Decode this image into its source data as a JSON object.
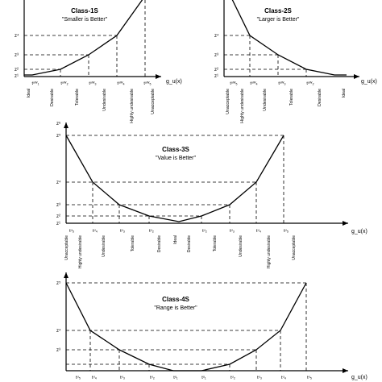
{
  "axis_label": "g_u(x)",
  "panels": [
    {
      "title": "Class-1S",
      "subtitle": "\"Smaller is Better\"",
      "z_labels": [
        "z¹",
        "z²",
        "z³",
        "z⁴"
      ],
      "t_labels": [
        "tᵘᵂ₁",
        "tᵘᵂ₂",
        "tᵘᵂ₃",
        "tᵘᵂ₄",
        "tᵘᵂ₅"
      ],
      "categories": [
        "Ideal",
        "Desirable",
        "Tolerable",
        "Undesirable",
        "Highly undesirable",
        "Unacceptable"
      ]
    },
    {
      "title": "Class-2S",
      "subtitle": "\"Larger is Better\"",
      "z_labels": [
        "z¹",
        "z²",
        "z³",
        "z⁴"
      ],
      "t_labels": [
        "tᵘᵂ₅",
        "tᵘᵂ₄",
        "tᵘᵂ₃",
        "tᵘᵂ₂"
      ],
      "categories": [
        "Unacceptable",
        "Highly undesirable",
        "Undesirable",
        "Tolerable",
        "Desirable",
        "Ideal"
      ]
    },
    {
      "title": "Class-3S",
      "subtitle": "\"Value is Better\"",
      "z_labels": [
        "z¹",
        "z²",
        "z³",
        "z⁴",
        "z⁵"
      ],
      "y_axis_label": "zᵘ",
      "t_labels": [
        "tᵘ₅",
        "tᵘ₄",
        "tᵘ₃",
        "tᵘ₂",
        "tᵘ₂",
        "tᵘ₃",
        "tᵘ₄",
        "tᵘ₅"
      ],
      "categories": [
        "Unacceptable",
        "Highly undesirable",
        "Undesirable",
        "Tolerable",
        "Desirable",
        "Ideal",
        "Desirable",
        "Tolerable",
        "Undesirable",
        "Highly undesirable",
        "Unacceptable"
      ]
    },
    {
      "title": "Class-4S",
      "subtitle": "\"Range is Better\"",
      "z_labels": [
        "z³",
        "z⁴",
        "z⁵"
      ],
      "t_labels": [
        "tᵘ₅",
        "tᵘ₄",
        "tᵘ₃",
        "tᵘ₂",
        "tᵘ₁",
        "tᵘ₁",
        "tᵘ₂",
        "tᵘ₃",
        "tᵘ₄",
        "tᵘ₅"
      ],
      "categories": []
    }
  ]
}
